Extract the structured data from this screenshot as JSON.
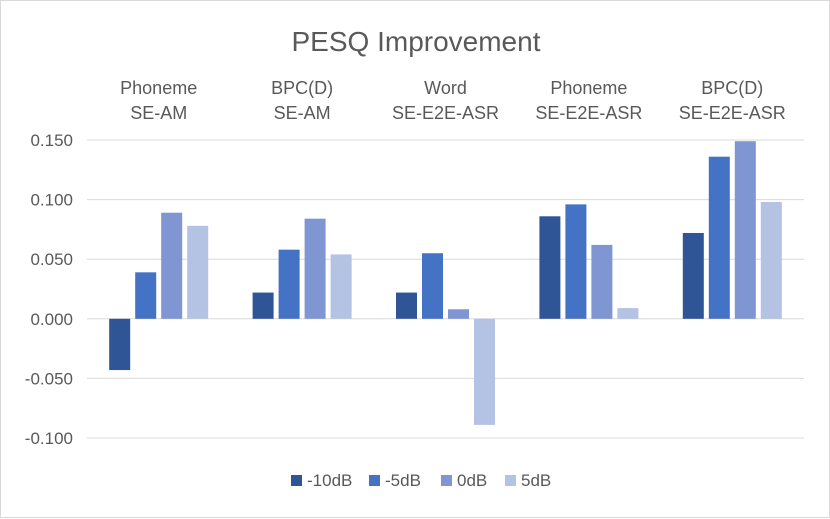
{
  "chart_data": {
    "type": "bar",
    "title": "PESQ Improvement",
    "categories": [
      [
        "Phoneme",
        "SE-AM"
      ],
      [
        "BPC(D)",
        "SE-AM"
      ],
      [
        "Word",
        "SE-E2E-ASR"
      ],
      [
        "Phoneme",
        "SE-E2E-ASR"
      ],
      [
        "BPC(D)",
        "SE-E2E-ASR"
      ]
    ],
    "series": [
      {
        "name": "-10dB",
        "color": "#2f5597",
        "values": [
          -0.043,
          0.022,
          0.022,
          0.086,
          0.072
        ]
      },
      {
        "name": "-5dB",
        "color": "#4472c4",
        "values": [
          0.039,
          0.058,
          0.055,
          0.096,
          0.136
        ]
      },
      {
        "name": "0dB",
        "color": "#7f96d2",
        "values": [
          0.089,
          0.084,
          0.008,
          0.062,
          0.149
        ]
      },
      {
        "name": "5dB",
        "color": "#b4c2e3",
        "values": [
          0.078,
          0.054,
          -0.089,
          0.009,
          0.098
        ]
      }
    ],
    "ylim": [
      -0.1,
      0.15
    ],
    "yticks": [
      "0.150",
      "0.100",
      "0.050",
      "0.000",
      "-0.050",
      "-0.100"
    ],
    "ytick_values": [
      0.15,
      0.1,
      0.05,
      0.0,
      -0.05,
      -0.1
    ],
    "grid": true,
    "legend_position": "bottom",
    "xlabel": "",
    "ylabel": ""
  }
}
